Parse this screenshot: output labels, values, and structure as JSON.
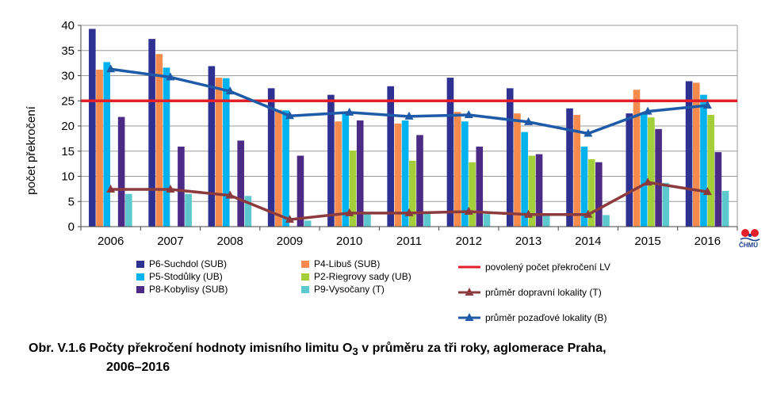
{
  "chart_data": {
    "type": "bar",
    "ylabel": "počet překročení",
    "ylim": [
      0,
      40
    ],
    "yticks": [
      0,
      5,
      10,
      15,
      20,
      25,
      30,
      35,
      40
    ],
    "categories": [
      "2006",
      "2007",
      "2008",
      "2009",
      "2010",
      "2011",
      "2012",
      "2013",
      "2014",
      "2015",
      "2016"
    ],
    "series": [
      {
        "name": "P6-Suchdol (SUB)",
        "color": "#2e3192",
        "values": [
          39.3,
          37.3,
          31.9,
          27.5,
          26.2,
          27.9,
          29.6,
          27.5,
          23.5,
          22.5,
          28.9
        ]
      },
      {
        "name": "P4-Libuš (SUB)",
        "color": "#f68b4d",
        "values": [
          31.2,
          34.3,
          29.6,
          23.2,
          20.9,
          20.5,
          22.8,
          22.5,
          22.2,
          27.2,
          28.6
        ]
      },
      {
        "name": "P5-Stodůlky (UB)",
        "color": "#00b3ef",
        "values": [
          32.7,
          31.6,
          29.5,
          23.1,
          22.5,
          21.1,
          20.9,
          18.8,
          15.9,
          22.3,
          26.2
        ]
      },
      {
        "name": "P2-Riegrovy sady (UB)",
        "color": "#a4cf3a",
        "values": [
          null,
          null,
          null,
          null,
          15.1,
          13.1,
          12.8,
          14.1,
          13.4,
          21.7,
          22.2
        ]
      },
      {
        "name": "P8-Kobylisy (SUB)",
        "color": "#4b2b86",
        "values": [
          21.8,
          15.9,
          17.1,
          14.1,
          21.1,
          18.2,
          15.9,
          14.4,
          12.8,
          19.4,
          14.8
        ]
      },
      {
        "name": "P9-Vysočany (T)",
        "color": "#5ec8cf",
        "values": [
          6.5,
          6.5,
          6.1,
          1.2,
          2.6,
          2.6,
          2.5,
          2.3,
          2.3,
          8.7,
          7.1
        ]
      }
    ],
    "lines": [
      {
        "name": "povolený počet překročení LV",
        "color": "#e3202a",
        "values": [
          25,
          25,
          25,
          25,
          25,
          25,
          25,
          25,
          25,
          25,
          25
        ]
      },
      {
        "name": "průměr dopravní lokality (T)",
        "color": "#8b3a3e",
        "values": [
          7.4,
          7.4,
          6.2,
          1.4,
          2.7,
          2.7,
          3.0,
          2.4,
          2.4,
          8.8,
          6.9
        ]
      },
      {
        "name": "průměr pozaďové lokality  (B)",
        "color": "#1d5aa8",
        "values": [
          31.3,
          29.7,
          26.9,
          22.0,
          22.7,
          21.9,
          22.2,
          20.8,
          18.5,
          22.9,
          24.1
        ]
      }
    ],
    "legend_position": "bottom"
  },
  "legend": {
    "bars": [
      {
        "label": "P6-Suchdol (SUB)",
        "color": "#2e3192"
      },
      {
        "label": "P5-Stodůlky (UB)",
        "color": "#00b3ef"
      },
      {
        "label": "P8-Kobylisy (SUB)",
        "color": "#4b2b86"
      },
      {
        "label": "P4-Libuš (SUB)",
        "color": "#f68b4d"
      },
      {
        "label": "P2-Riegrovy sady (UB)",
        "color": "#a4cf3a"
      },
      {
        "label": "P9-Vysočany (T)",
        "color": "#5ec8cf"
      }
    ],
    "lines": [
      {
        "label": "povolený počet překročení LV",
        "color": "#e3202a",
        "marker": "none"
      },
      {
        "label": "průměr dopravní lokality (T)",
        "color": "#8b3a3e",
        "marker": "triangle"
      },
      {
        "label": "průměr pozaďové lokality  (B)",
        "color": "#1d5aa8",
        "marker": "triangle"
      }
    ]
  },
  "caption": {
    "line1_prefix": "Obr. V.1.6  Počty překročení hodnoty imisního limitu O",
    "line1_sub": "3",
    "line1_suffix": " v průměru za tři roky, aglomerace Praha,",
    "line2": "2006–2016"
  },
  "logo": {
    "text": "ČHMÚ",
    "icon": "chmu-logo-icon"
  }
}
